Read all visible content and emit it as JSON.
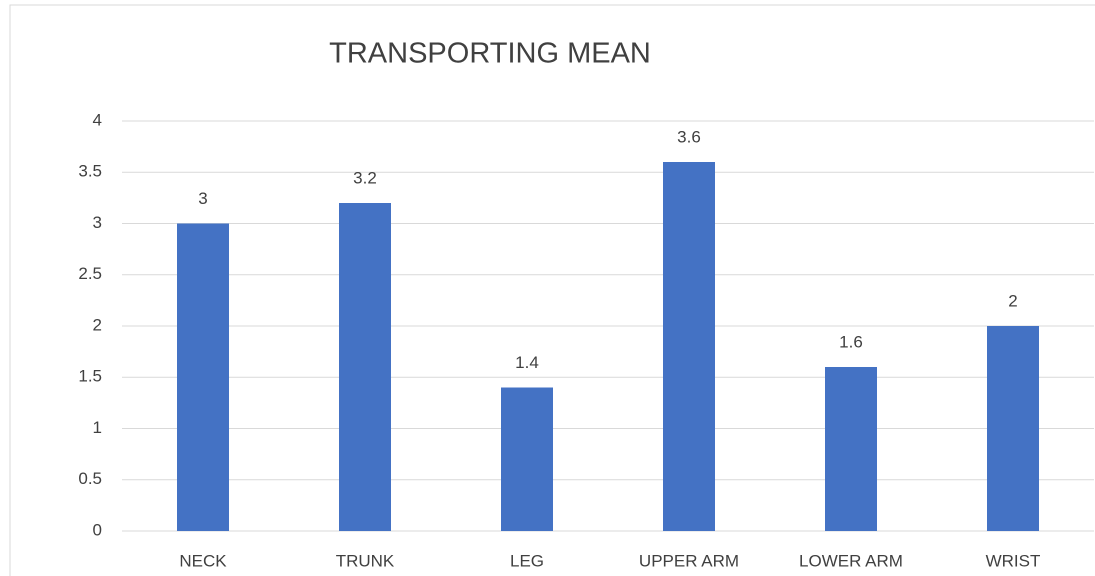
{
  "chart_data": {
    "type": "bar",
    "title": "TRANSPORTING MEAN",
    "categories": [
      "NECK",
      "TRUNK",
      "LEG",
      "UPPER ARM",
      "LOWER ARM",
      "WRIST"
    ],
    "values": [
      3,
      3.2,
      1.4,
      3.6,
      1.6,
      2
    ],
    "color": "#4472c4",
    "ylim": [
      0,
      4
    ],
    "yticks": [
      0,
      0.5,
      1,
      1.5,
      2,
      2.5,
      3,
      3.5,
      4
    ],
    "grid": true
  }
}
